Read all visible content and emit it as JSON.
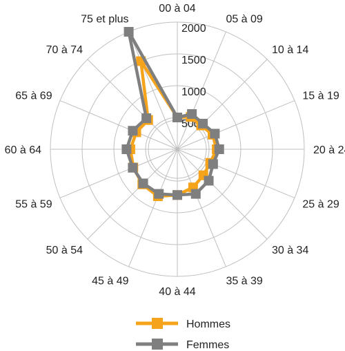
{
  "chart_data": {
    "type": "radar",
    "title": "",
    "categories": [
      "00 à 04",
      "05 à 09",
      "10 à 14",
      "15 à 19",
      "20 à 24",
      "25 à 29",
      "30 à 34",
      "35 à 39",
      "40 à 44",
      "45 à 49",
      "50 à 54",
      "55 à 59",
      "60 à 64",
      "65 à 69",
      "70 à 74",
      "75 et plus"
    ],
    "radial_ticks": [
      500,
      1000,
      1500,
      2000
    ],
    "rmax": 2000,
    "grid": true,
    "legend_position": "bottom",
    "series": [
      {
        "name": "Hommes",
        "color": "#f5a31a",
        "values": [
          500,
          550,
          530,
          600,
          620,
          560,
          580,
          650,
          720,
          800,
          780,
          750,
          740,
          700,
          650,
          1500
        ]
      },
      {
        "name": "Femmes",
        "color": "#7f7f7f",
        "values": [
          500,
          600,
          570,
          640,
          660,
          610,
          700,
          760,
          720,
          760,
          760,
          760,
          800,
          760,
          690,
          2000
        ]
      }
    ]
  }
}
